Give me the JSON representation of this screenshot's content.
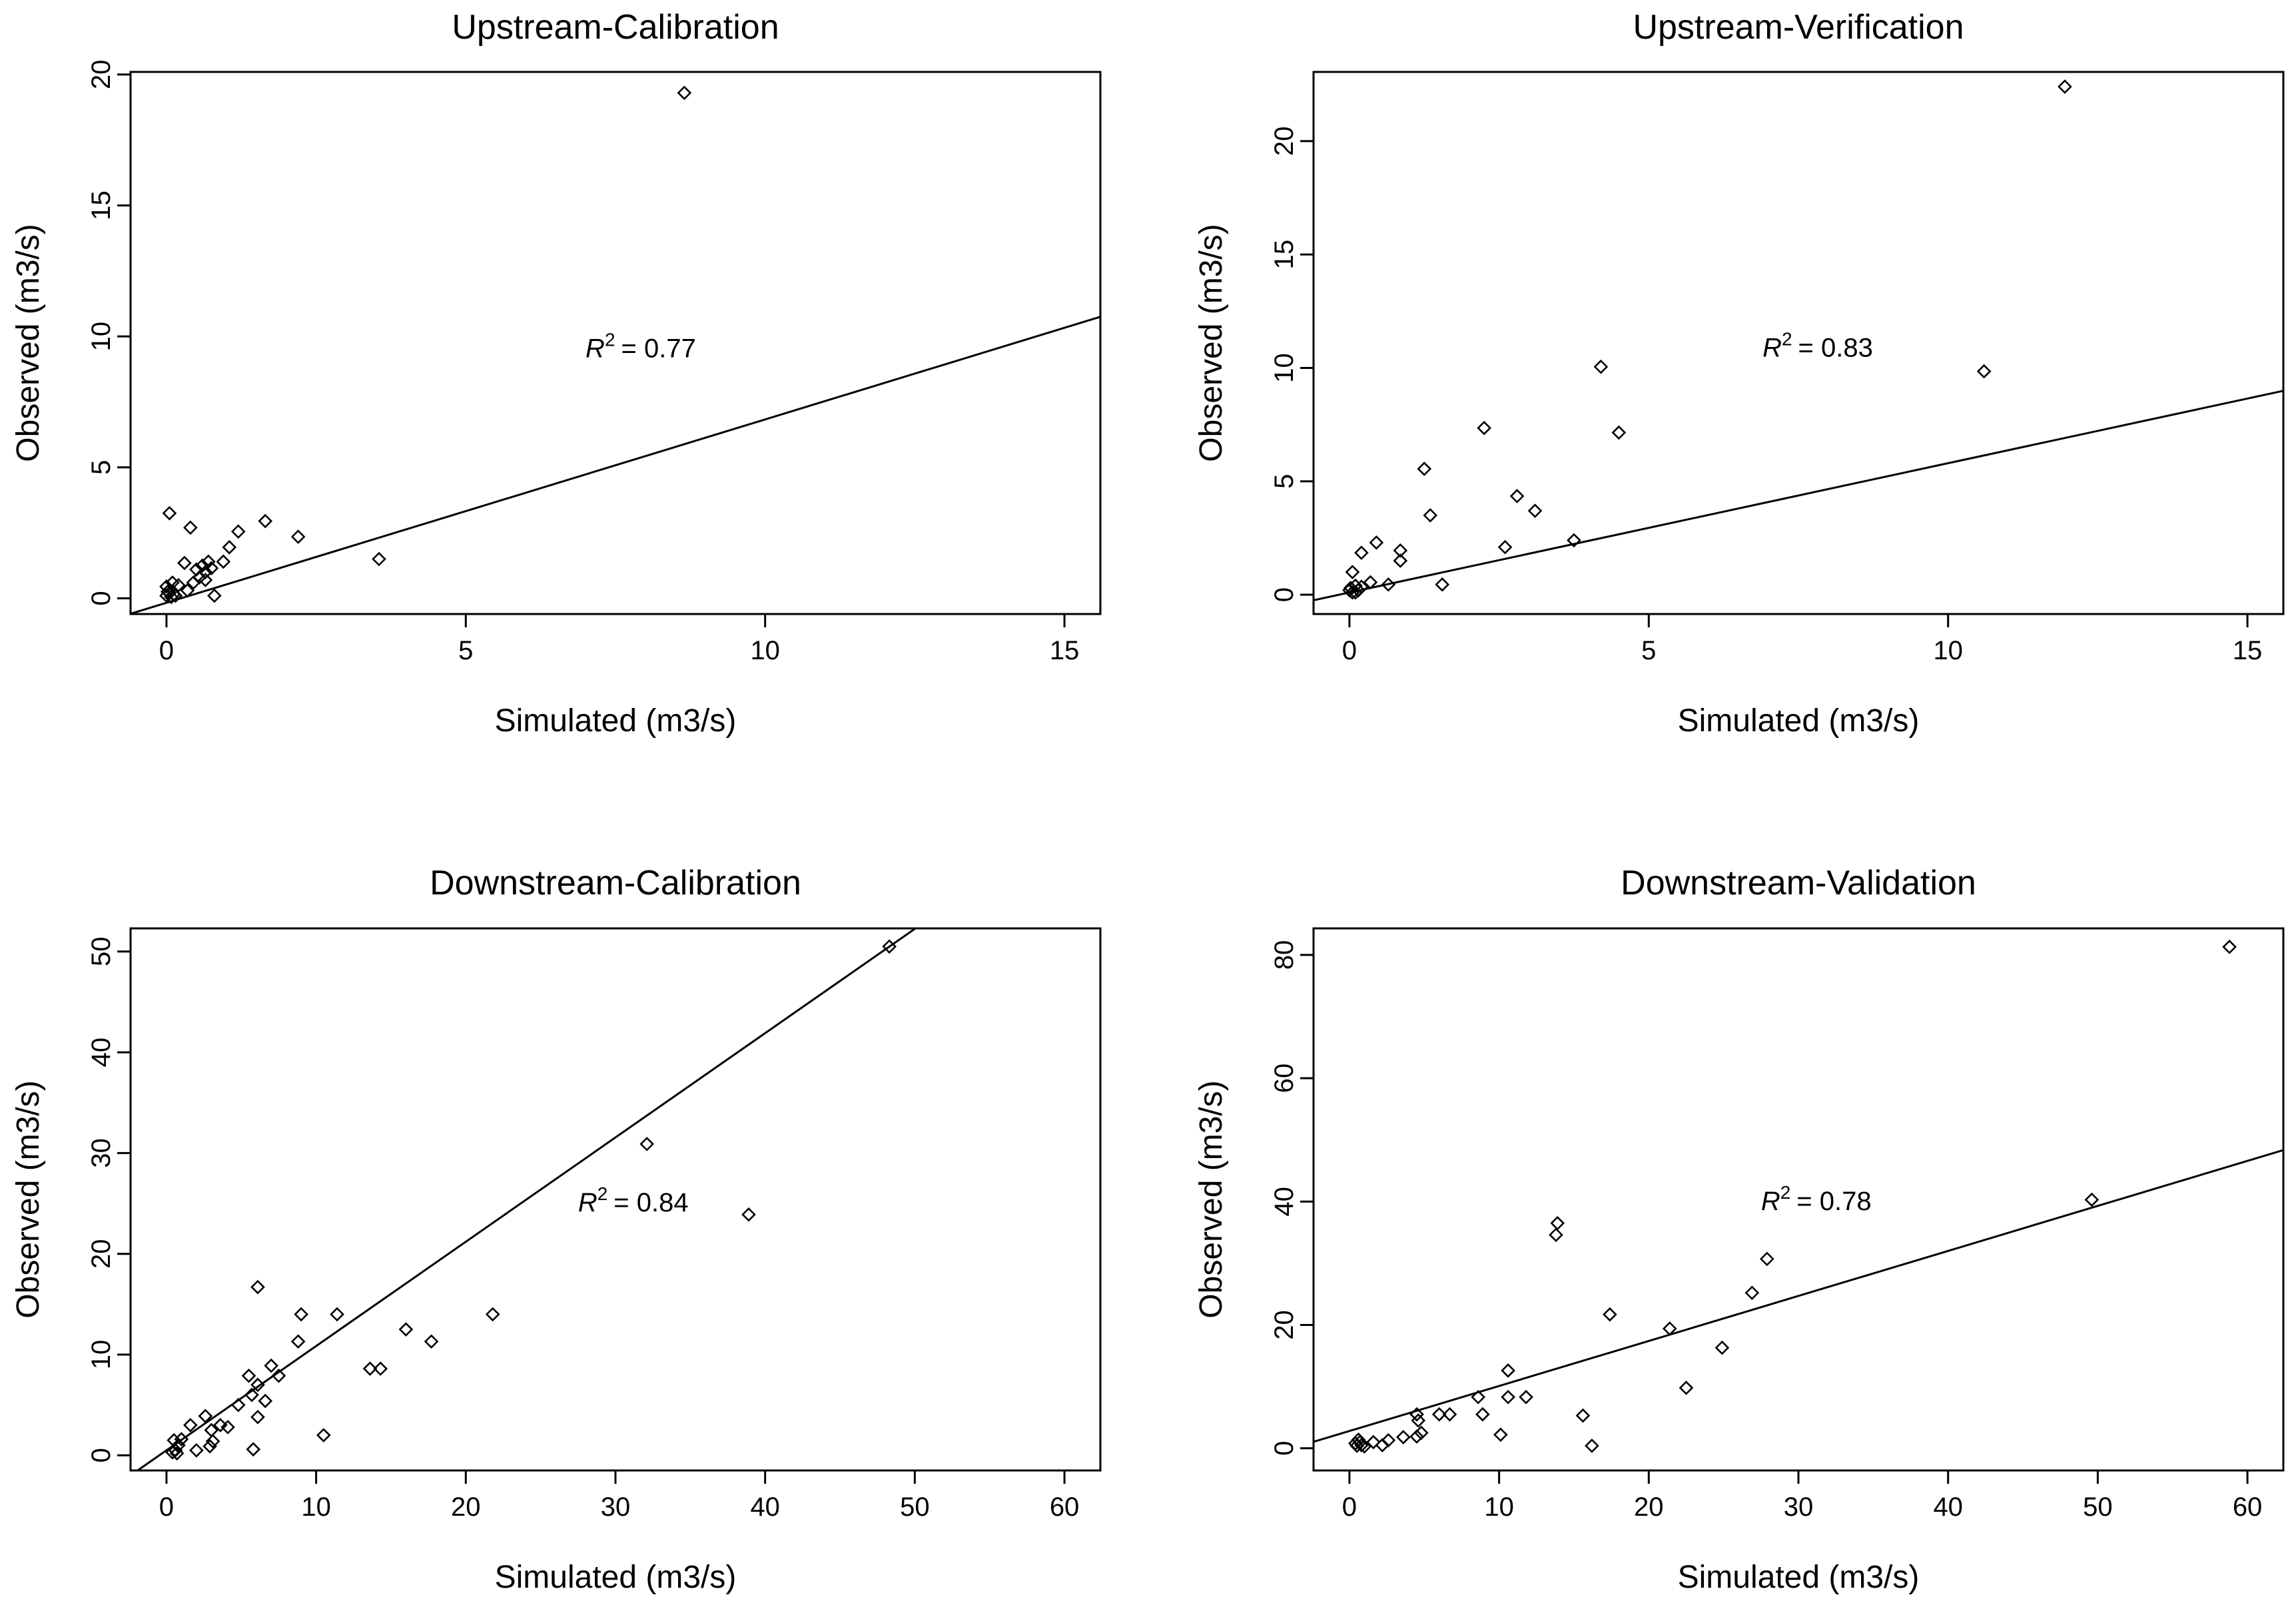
{
  "figure": {
    "x_axis_label": "Simulated (m3/s)",
    "y_axis_label": "Observed (m3/s)"
  },
  "chart_data": [
    {
      "type": "scatter",
      "title": "Upstream-Calibration",
      "xlabel": "Simulated (m3/s)",
      "ylabel": "Observed (m3/s)",
      "xlim": [
        -0.6,
        15.6
      ],
      "ylim": [
        -0.6,
        20.1
      ],
      "xticks": [
        0,
        5,
        10,
        15
      ],
      "yticks": [
        0,
        5,
        10,
        15,
        20
      ],
      "r2_symbol": "R",
      "r2_exponent": "2",
      "r2_value": "= 0.77",
      "r2_anchor": [
        7.0,
        9.2
      ],
      "fit": {
        "intercept": -0.17,
        "slope": 0.7
      },
      "points": [
        [
          8.65,
          19.3
        ],
        [
          0.05,
          3.25
        ],
        [
          0.4,
          2.7
        ],
        [
          1.2,
          2.55
        ],
        [
          1.65,
          2.95
        ],
        [
          2.2,
          2.35
        ],
        [
          1.05,
          1.95
        ],
        [
          0.95,
          1.4
        ],
        [
          3.55,
          1.5
        ],
        [
          0.8,
          0.1
        ],
        [
          0.3,
          1.35
        ],
        [
          0.5,
          1.1
        ],
        [
          0.6,
          1.25
        ],
        [
          0.65,
          1.0
        ],
        [
          0.7,
          1.4
        ],
        [
          0.75,
          1.15
        ],
        [
          0.55,
          0.8
        ],
        [
          0.65,
          0.7
        ],
        [
          0.45,
          0.6
        ],
        [
          0.2,
          0.5
        ],
        [
          0.35,
          0.3
        ],
        [
          0.1,
          0.6
        ],
        [
          0.0,
          0.45
        ],
        [
          0.05,
          0.2
        ],
        [
          0.0,
          0.1
        ],
        [
          0.08,
          0.05
        ],
        [
          0.12,
          0.15
        ],
        [
          0.02,
          0.25
        ],
        [
          0.15,
          0.1
        ]
      ]
    },
    {
      "type": "scatter",
      "title": "Upstream-Verification",
      "xlabel": "Simulated (m3/s)",
      "ylabel": "Observed (m3/s)",
      "xlim": [
        -0.6,
        15.6
      ],
      "ylim": [
        -0.85,
        23.05
      ],
      "xticks": [
        0,
        5,
        10,
        15
      ],
      "yticks": [
        0,
        5,
        10,
        15,
        20
      ],
      "r2_symbol": "R",
      "r2_exponent": "2",
      "r2_value": "= 0.83",
      "r2_anchor": [
        6.9,
        10.5
      ],
      "fit": {
        "intercept": 0.1,
        "slope": 0.57
      },
      "points": [
        [
          11.95,
          22.4
        ],
        [
          4.2,
          10.05
        ],
        [
          10.6,
          9.85
        ],
        [
          2.25,
          7.35
        ],
        [
          4.5,
          7.15
        ],
        [
          1.25,
          5.55
        ],
        [
          2.8,
          4.35
        ],
        [
          3.1,
          3.7
        ],
        [
          1.35,
          3.5
        ],
        [
          0.45,
          2.3
        ],
        [
          3.75,
          2.4
        ],
        [
          2.6,
          2.1
        ],
        [
          0.2,
          1.85
        ],
        [
          0.85,
          1.95
        ],
        [
          0.85,
          1.5
        ],
        [
          0.05,
          1.0
        ],
        [
          1.55,
          0.45
        ],
        [
          0.65,
          0.45
        ],
        [
          0.35,
          0.55
        ],
        [
          0.2,
          0.35
        ],
        [
          0.1,
          0.4
        ],
        [
          0.0,
          0.2
        ],
        [
          0.05,
          0.1
        ],
        [
          0.1,
          0.1
        ],
        [
          0.02,
          0.3
        ],
        [
          0.15,
          0.2
        ]
      ]
    },
    {
      "type": "scatter",
      "title": "Downstream-Calibration",
      "xlabel": "Simulated (m3/s)",
      "ylabel": "Observed (m3/s)",
      "xlim": [
        -2.4,
        62.4
      ],
      "ylim": [
        -1.5,
        52.3
      ],
      "xticks": [
        0,
        10,
        20,
        30,
        40,
        50,
        60
      ],
      "yticks": [
        0,
        10,
        20,
        30,
        40,
        50
      ],
      "r2_symbol": "R",
      "r2_exponent": "2",
      "r2_value": "= 0.84",
      "r2_anchor": [
        27.5,
        24.2
      ],
      "fit": {
        "intercept": 0.5,
        "slope": 1.035
      },
      "points": [
        [
          48.3,
          50.5
        ],
        [
          32.1,
          30.9
        ],
        [
          38.9,
          23.9
        ],
        [
          6.1,
          16.7
        ],
        [
          21.8,
          14.0
        ],
        [
          11.4,
          14.0
        ],
        [
          9.0,
          14.0
        ],
        [
          16.0,
          12.5
        ],
        [
          17.7,
          11.3
        ],
        [
          8.8,
          11.3
        ],
        [
          13.6,
          8.6
        ],
        [
          14.3,
          8.6
        ],
        [
          7.0,
          8.9
        ],
        [
          7.5,
          7.9
        ],
        [
          5.5,
          7.9
        ],
        [
          6.1,
          7.0
        ],
        [
          5.7,
          6.0
        ],
        [
          6.6,
          5.4
        ],
        [
          4.8,
          5.0
        ],
        [
          6.1,
          3.8
        ],
        [
          2.6,
          3.9
        ],
        [
          3.6,
          3.0
        ],
        [
          4.1,
          2.8
        ],
        [
          3.0,
          2.5
        ],
        [
          1.6,
          3.0
        ],
        [
          10.5,
          2.0
        ],
        [
          3.1,
          1.4
        ],
        [
          2.9,
          0.9
        ],
        [
          2.0,
          0.5
        ],
        [
          5.8,
          0.6
        ],
        [
          0.5,
          1.5
        ],
        [
          0.8,
          1.0
        ],
        [
          0.6,
          0.5
        ],
        [
          0.4,
          0.3
        ],
        [
          0.7,
          0.2
        ],
        [
          1.0,
          1.6
        ]
      ]
    },
    {
      "type": "scatter",
      "title": "Downstream-Validation",
      "xlabel": "Simulated (m3/s)",
      "ylabel": "Observed (m3/s)",
      "xlim": [
        -2.4,
        62.4
      ],
      "ylim": [
        -3.6,
        84.3
      ],
      "xticks": [
        0,
        10,
        20,
        30,
        40,
        50,
        60
      ],
      "yticks": [
        0,
        20,
        40,
        60,
        80
      ],
      "r2_symbol": "R",
      "r2_exponent": "2",
      "r2_value": "= 0.78",
      "r2_anchor": [
        27.5,
        38.6
      ],
      "fit": {
        "intercept": 2.8,
        "slope": 0.73
      },
      "points": [
        [
          58.8,
          81.3
        ],
        [
          49.6,
          40.3
        ],
        [
          13.9,
          36.5
        ],
        [
          13.8,
          34.6
        ],
        [
          27.9,
          30.7
        ],
        [
          26.9,
          25.2
        ],
        [
          17.4,
          21.7
        ],
        [
          21.4,
          19.4
        ],
        [
          24.9,
          16.3
        ],
        [
          10.6,
          12.6
        ],
        [
          22.5,
          9.8
        ],
        [
          11.8,
          8.3
        ],
        [
          10.6,
          8.3
        ],
        [
          8.6,
          8.3
        ],
        [
          6.7,
          5.5
        ],
        [
          6.0,
          5.5
        ],
        [
          8.9,
          5.5
        ],
        [
          15.6,
          5.3
        ],
        [
          4.5,
          5.5
        ],
        [
          4.6,
          4.5
        ],
        [
          4.8,
          2.5
        ],
        [
          4.5,
          1.9
        ],
        [
          10.1,
          2.2
        ],
        [
          3.6,
          1.8
        ],
        [
          2.6,
          1.3
        ],
        [
          2.2,
          0.5
        ],
        [
          16.2,
          0.4
        ],
        [
          1.6,
          1.0
        ],
        [
          0.6,
          1.4
        ],
        [
          0.8,
          0.5
        ],
        [
          0.4,
          0.8
        ],
        [
          1.0,
          0.3
        ],
        [
          0.7,
          1.0
        ],
        [
          0.5,
          0.4
        ]
      ]
    }
  ]
}
